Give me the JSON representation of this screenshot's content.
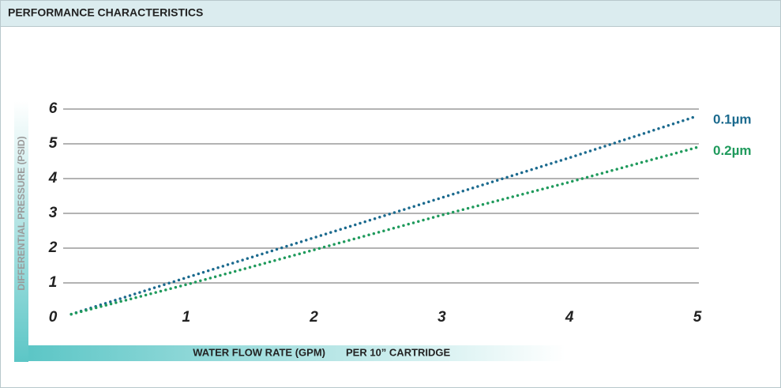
{
  "header": {
    "title": "PERFORMANCE CHARACTERISTICS"
  },
  "chart_data": {
    "type": "line",
    "ylabel": "DIFFERENTIAL PRESSURE (PSID)",
    "xlabel": "WATER FLOW RATE (GPM)",
    "xlabel_note": "PER 10” CARTRIDGE",
    "x": [
      0.1,
      1,
      2,
      3,
      4,
      5
    ],
    "series": [
      {
        "name": "0.1µm",
        "color": "#1b6a8e",
        "values": [
          0.1,
          1.15,
          2.3,
          3.45,
          4.6,
          5.8
        ]
      },
      {
        "name": "0.2µm",
        "color": "#1f9a5c",
        "values": [
          0.1,
          0.95,
          1.95,
          2.95,
          3.9,
          4.9
        ]
      }
    ],
    "xlim": [
      0,
      5
    ],
    "xticks": [
      1,
      2,
      3,
      4,
      5
    ],
    "ylim": [
      0,
      6
    ],
    "yticks": [
      0,
      1,
      2,
      3,
      4,
      5,
      6
    ],
    "grid": true
  }
}
